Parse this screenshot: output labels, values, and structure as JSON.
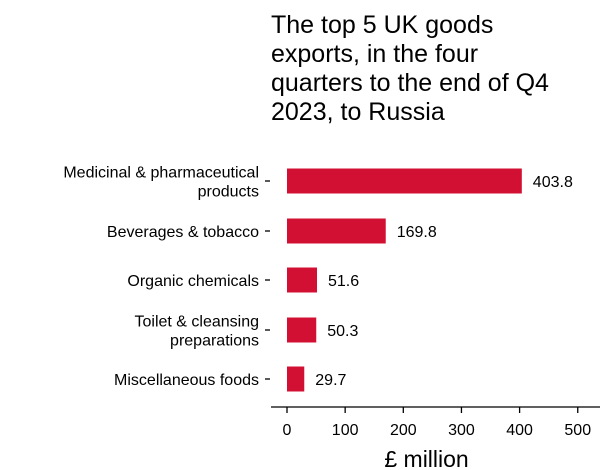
{
  "chart_data": {
    "type": "bar",
    "orientation": "horizontal",
    "title": "The top 5 UK goods exports, in the four quarters to the end of Q4 2023, to Russia",
    "title_lines": [
      "The top 5 UK goods",
      "exports, in the four",
      "quarters to the end of Q4",
      "2023, to Russia"
    ],
    "categories": [
      "Medicinal & pharmaceutical products",
      "Beverages & tobacco",
      "Organic chemicals",
      "Toilet & cleansing preparations",
      "Miscellaneous foods"
    ],
    "category_lines": [
      [
        "Medicinal & pharmaceutical",
        "products"
      ],
      [
        "Beverages & tobacco"
      ],
      [
        "Organic chemicals"
      ],
      [
        "Toilet & cleansing",
        "preparations"
      ],
      [
        "Miscellaneous foods"
      ]
    ],
    "values": [
      403.8,
      169.8,
      51.6,
      50.3,
      29.7
    ],
    "value_labels": [
      "403.8",
      "169.8",
      "51.6",
      "50.3",
      "29.7"
    ],
    "xlabel": "£ million",
    "ylabel": "",
    "xlim": [
      0,
      500
    ],
    "xticks": [
      0,
      100,
      200,
      300,
      400,
      500
    ],
    "xtick_labels": [
      "0",
      "100",
      "200",
      "300",
      "400",
      "500"
    ],
    "grid": false,
    "legend": "none",
    "colors": {
      "bar": "#d21033",
      "text": "#000000",
      "axis": "#000000",
      "background": "#ffffff"
    }
  }
}
